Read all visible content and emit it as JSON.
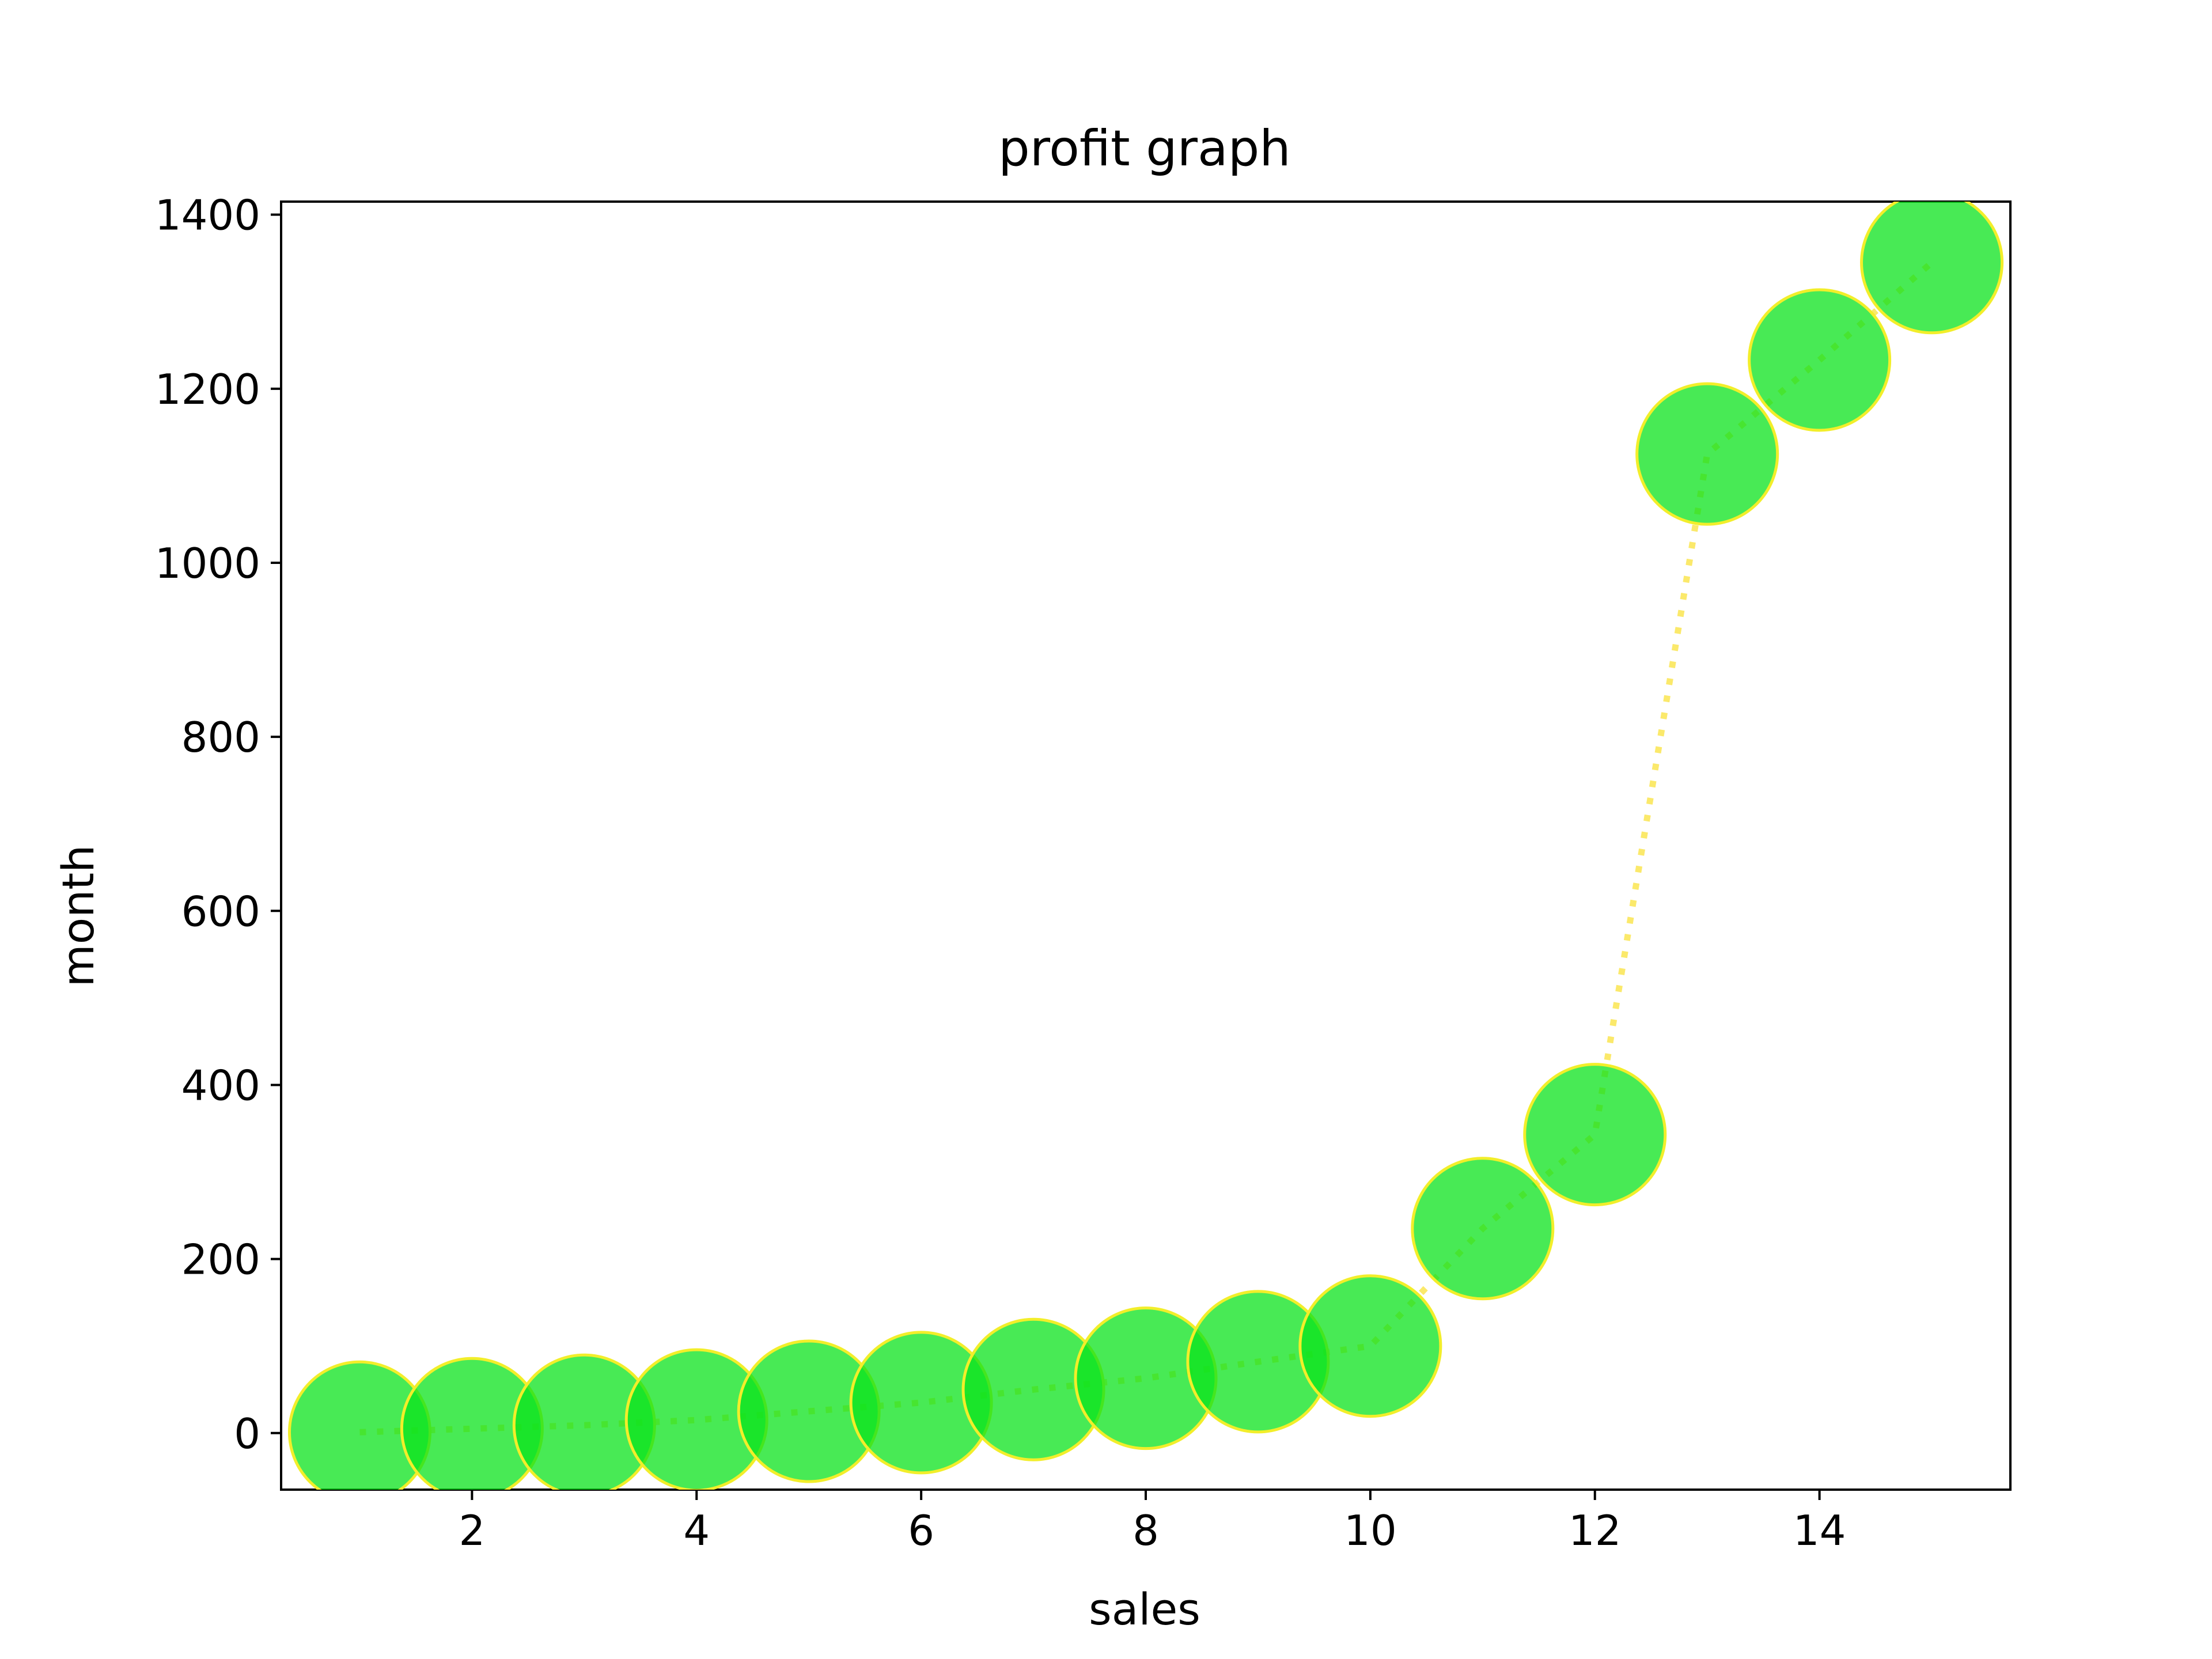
{
  "chart_data": {
    "type": "scatter",
    "title": "profit graph",
    "xlabel": "sales",
    "ylabel": "month",
    "xlim": [
      0.3,
      15.7
    ],
    "ylim": [
      -65,
      1415
    ],
    "xticks": [
      2,
      4,
      6,
      8,
      10,
      12,
      14
    ],
    "yticks": [
      0,
      200,
      400,
      600,
      800,
      1000,
      1200,
      1400
    ],
    "grid": false,
    "legend": "none",
    "marker_color": "#0be31c",
    "marker_edge_color": "#f2ee2a",
    "line_color": "#f9e13a",
    "line_style": "dotted",
    "series": [
      {
        "x": [
          1,
          2,
          3,
          4,
          5,
          6,
          7,
          8,
          9,
          10,
          11,
          12,
          13,
          14,
          15
        ],
        "y": [
          1,
          5,
          9,
          15,
          25,
          35,
          50,
          63,
          82,
          100,
          235,
          343,
          1125,
          1233,
          1345
        ]
      }
    ]
  }
}
